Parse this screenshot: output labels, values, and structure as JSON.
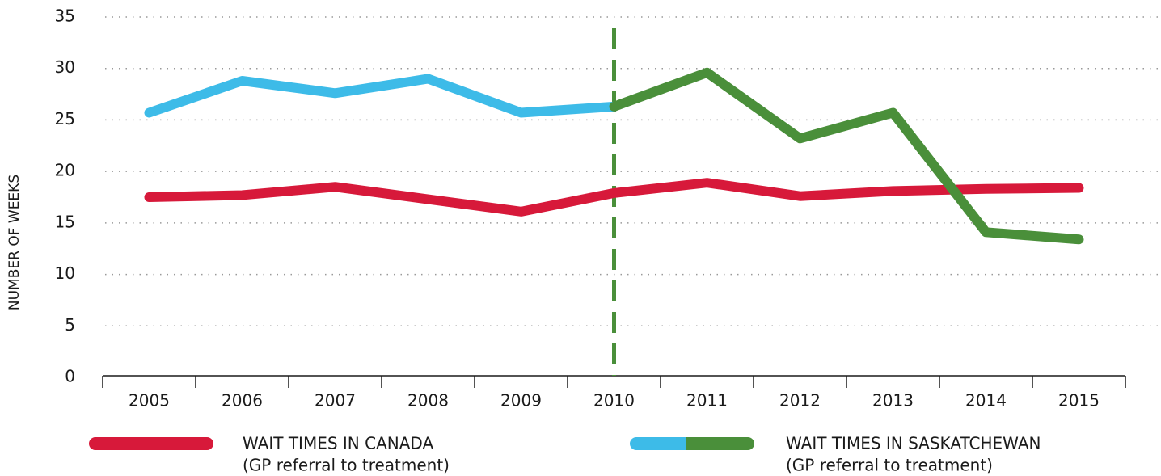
{
  "chart_data": {
    "type": "line",
    "y_label": "NUMBER OF WEEKS",
    "categories": [
      "2005",
      "2006",
      "2007",
      "2008",
      "2009",
      "2010",
      "2011",
      "2012",
      "2013",
      "2014",
      "2015"
    ],
    "series": [
      {
        "name": "WAIT TIMES IN CANADA",
        "description": "(GP referral to treatment)",
        "colors": [
          "#d7193a"
        ],
        "values": [
          17.5,
          17.7,
          18.5,
          17.3,
          16.1,
          17.9,
          18.9,
          17.6,
          18.1,
          18.3,
          18.4
        ]
      },
      {
        "name": "WAIT TIMES IN SASKATCHEWAN",
        "description": "(GP referral to treatment)",
        "colors": [
          "#3dbbe8",
          "#4a8f3a"
        ],
        "values": [
          25.7,
          28.8,
          27.6,
          29.0,
          25.7,
          26.3,
          29.6,
          23.2,
          25.7,
          14.1,
          13.4
        ]
      }
    ],
    "marker_line": {
      "category": "2010",
      "color": "#4a8f3a",
      "dashed": true
    },
    "ylim": [
      0,
      35
    ],
    "yticks": [
      0,
      5,
      10,
      15,
      20,
      25,
      30,
      35
    ],
    "grid": true
  }
}
